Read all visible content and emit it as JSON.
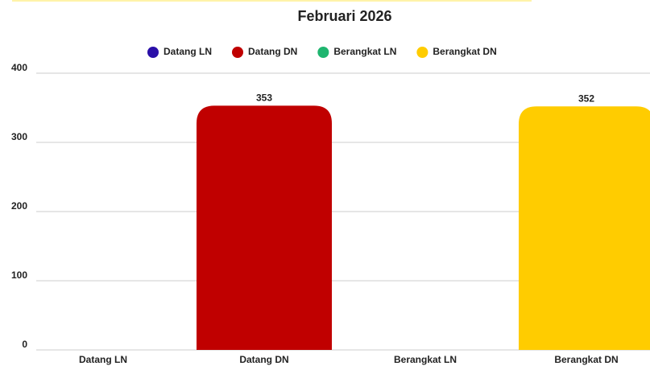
{
  "chart_data": {
    "type": "bar",
    "title": "Februari 2026",
    "categories": [
      "Datang LN",
      "Datang DN",
      "Berangkat LN",
      "Berangkat DN"
    ],
    "values": [
      null,
      353,
      null,
      352
    ],
    "colors": [
      "#2a0fa8",
      "#c00000",
      "#1fb56f",
      "#ffcc00"
    ],
    "ylim": [
      0,
      400
    ],
    "yticks": [
      0,
      100,
      200,
      300,
      400
    ],
    "grid": true,
    "legend": "top"
  }
}
